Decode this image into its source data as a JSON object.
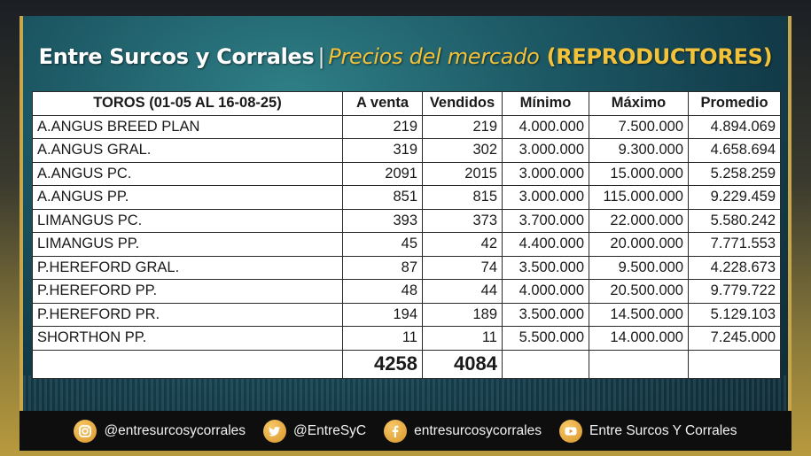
{
  "header": {
    "title_main": "Entre Surcos y Corrales",
    "separator": "|",
    "title_sub": "Precios del mercado",
    "title_category": "(REPRODUCTORES)"
  },
  "table": {
    "columns": [
      "TOROS (01-05 AL 16-08-25)",
      "A venta",
      "Vendidos",
      "Mínimo",
      "Máximo",
      "Promedio"
    ],
    "rows": [
      {
        "name": "A.ANGUS BREED PLAN",
        "a_venta": "219",
        "vendidos": "219",
        "minimo": "4.000.000",
        "maximo": "7.500.000",
        "promedio": "4.894.069"
      },
      {
        "name": "A.ANGUS GRAL.",
        "a_venta": "319",
        "vendidos": "302",
        "minimo": "3.000.000",
        "maximo": "9.300.000",
        "promedio": "4.658.694"
      },
      {
        "name": "A.ANGUS PC.",
        "a_venta": "2091",
        "vendidos": "2015",
        "minimo": "3.000.000",
        "maximo": "15.000.000",
        "promedio": "5.258.259"
      },
      {
        "name": "A.ANGUS PP.",
        "a_venta": "851",
        "vendidos": "815",
        "minimo": "3.000.000",
        "maximo": "115.000.000",
        "promedio": "9.229.459"
      },
      {
        "name": "LIMANGUS PC.",
        "a_venta": "393",
        "vendidos": "373",
        "minimo": "3.700.000",
        "maximo": "22.000.000",
        "promedio": "5.580.242"
      },
      {
        "name": "LIMANGUS PP.",
        "a_venta": "45",
        "vendidos": "42",
        "minimo": "4.400.000",
        "maximo": "20.000.000",
        "promedio": "7.771.553"
      },
      {
        "name": "P.HEREFORD GRAL.",
        "a_venta": "87",
        "vendidos": "74",
        "minimo": "3.500.000",
        "maximo": "9.500.000",
        "promedio": "4.228.673"
      },
      {
        "name": "P.HEREFORD PP.",
        "a_venta": "48",
        "vendidos": "44",
        "minimo": "4.000.000",
        "maximo": "20.500.000",
        "promedio": "9.779.722"
      },
      {
        "name": "P.HEREFORD PR.",
        "a_venta": "194",
        "vendidos": "189",
        "minimo": "3.500.000",
        "maximo": "14.500.000",
        "promedio": "5.129.103"
      },
      {
        "name": "SHORTHON PP.",
        "a_venta": "11",
        "vendidos": "11",
        "minimo": "5.500.000",
        "maximo": "14.000.000",
        "promedio": "7.245.000"
      }
    ],
    "totals": {
      "a_venta": "4258",
      "vendidos": "4084"
    }
  },
  "footer": {
    "instagram": {
      "icon": "instagram-icon",
      "handle": "@entresurcosycorrales"
    },
    "twitter": {
      "icon": "twitter-icon",
      "handle": "@EntreSyC"
    },
    "facebook": {
      "icon": "facebook-icon",
      "handle": "entresurcosycorrales"
    },
    "youtube": {
      "icon": "youtube-icon",
      "handle": "Entre Surcos Y Corrales"
    }
  },
  "colors": {
    "accent_gold": "#f2c23a",
    "frame_teal": "#1d5a66",
    "icon_orange": "#e0a233",
    "footer_bg": "#0e0e0e"
  }
}
